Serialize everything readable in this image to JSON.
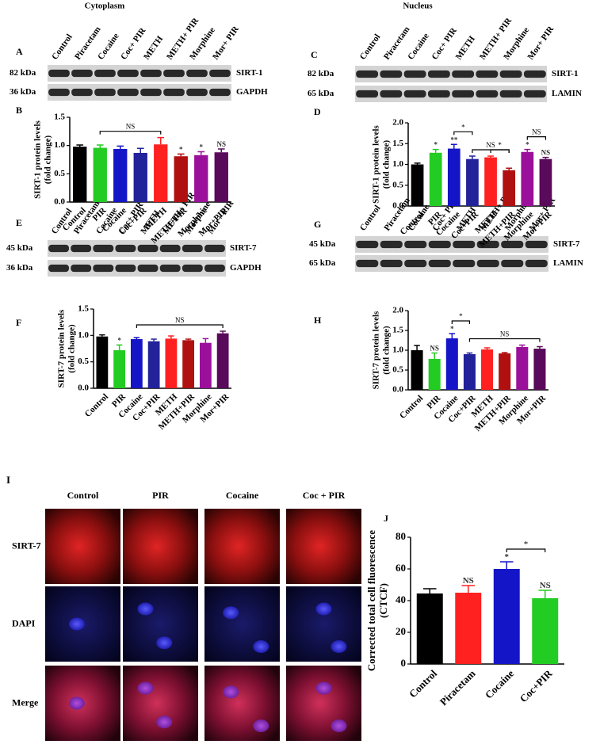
{
  "headers": [
    "Cytoplasm",
    "Nucleus"
  ],
  "blots": [
    {
      "letter": "A",
      "lanes": [
        "Control",
        "Piracetam",
        "Cocaine",
        "Coc+ PIR",
        "METH",
        "METH+ PIR",
        "Morphine",
        "Mor+ PIR"
      ],
      "rows": [
        {
          "size": "82 kDa",
          "protein": "SIRT-1"
        },
        {
          "size": "36 kDa",
          "protein": "GAPDH"
        }
      ]
    },
    {
      "letter": "C",
      "lanes": [
        "Control",
        "Piracetam",
        "Cocaine",
        "Coc+ PIR",
        "METH",
        "METH+ PIR",
        "Morphine",
        "Mor+ PIR"
      ],
      "rows": [
        {
          "size": "82 kDa",
          "protein": "SIRT-1"
        },
        {
          "size": "65 kDa",
          "protein": "LAMIN"
        }
      ]
    },
    {
      "letter": "E",
      "lanes": [
        "Control",
        "Piracetam",
        "Cocaine",
        "Coc+ PIR",
        "METH",
        "METH+ PIR",
        "Morphine",
        "Mor+ PIR"
      ],
      "rows": [
        {
          "size": "45 kDa",
          "protein": "SIRT-7"
        },
        {
          "size": "36 kDa",
          "protein": "GAPDH"
        }
      ]
    },
    {
      "letter": "G",
      "lanes": [
        "Control",
        "Piracetam",
        "Cocaine",
        "Coc+ PIR",
        "METH",
        "METH+ PIR",
        "Morphine",
        "Mor+ PIR"
      ],
      "rows": [
        {
          "size": "45 kDa",
          "protein": "SIRT-7"
        },
        {
          "size": "65 kDa",
          "protein": "LAMIN"
        }
      ]
    }
  ],
  "microscopy": {
    "letter": "I",
    "columns": [
      "Control",
      "PIR",
      "Cocaine",
      "Coc + PIR"
    ],
    "rows": [
      "SIRT-7",
      "DAPI",
      "Merge"
    ]
  },
  "chart_data": [
    {
      "type": "bar",
      "letter": "B",
      "y_label": [
        "SIRT-1 protein levels",
        "(fold change)"
      ],
      "categories": [
        "Control",
        "PIR",
        "Cocaine",
        "Coc+PIR",
        "METH",
        "METH+PIR",
        "Morphine",
        "Mor+PIR"
      ],
      "values": [
        0.98,
        0.96,
        0.94,
        0.87,
        1.02,
        0.81,
        0.83,
        0.88
      ],
      "errors": [
        0.03,
        0.05,
        0.05,
        0.08,
        0.12,
        0.04,
        0.06,
        0.06
      ],
      "colors": [
        "#000000",
        "#22cc22",
        "#1515c8",
        "#22229a",
        "#ff2020",
        "#b01010",
        "#9a109a",
        "#5a0a5a"
      ],
      "significance": [
        null,
        null,
        null,
        null,
        null,
        "*",
        "*",
        "NS"
      ],
      "brackets": [
        {
          "label": "NS",
          "from": "PIR",
          "to": "METH"
        }
      ],
      "ylim": [
        0,
        1.5
      ],
      "yticks": [
        {
          "value": 0,
          "label": "0.0"
        },
        0.5,
        {
          "value": 1,
          "label": "1.0"
        },
        1.5
      ]
    },
    {
      "type": "bar",
      "letter": "D",
      "y_label": [
        "SIRT-1 protein levels",
        "(fold change)"
      ],
      "categories": [
        "Control",
        "PIR",
        "Cocaine",
        "Coc+PIR",
        "METH",
        "METH+PIR",
        "Morphine",
        "Mor+PIR"
      ],
      "values": [
        1.0,
        1.28,
        1.38,
        1.13,
        1.17,
        0.86,
        1.3,
        1.13
      ],
      "errors": [
        0.03,
        0.08,
        0.1,
        0.07,
        0.03,
        0.05,
        0.06,
        0.04
      ],
      "colors": [
        "#000000",
        "#22cc22",
        "#1515c8",
        "#22229a",
        "#ff2020",
        "#b01010",
        "#9a109a",
        "#5a0a5a"
      ],
      "significance": [
        null,
        "*",
        "**",
        null,
        null,
        null,
        "*",
        "NS"
      ],
      "brackets": [
        {
          "label": "*",
          "from": "Cocaine",
          "to": "Coc+PIR"
        },
        {
          "label": "NS",
          "from": "Coc+PIR",
          "to": "METH+PIR"
        },
        {
          "label": "*",
          "from": "METH",
          "to": "METH+PIR"
        },
        {
          "label": "NS",
          "from": "Morphine",
          "to": "Mor+PIR"
        }
      ],
      "ylim": [
        0,
        2
      ],
      "yticks": [
        {
          "value": 0,
          "label": "0.0"
        },
        0.5,
        {
          "value": 1,
          "label": "1.0"
        },
        1.5,
        {
          "value": 2,
          "label": "2.0"
        }
      ]
    },
    {
      "type": "bar",
      "letter": "F",
      "y_label": [
        "SIRT-7 protein levels",
        "(fold change)"
      ],
      "categories": [
        "Control",
        "PIR",
        "Cocaine",
        "Coc+PIR",
        "METH",
        "METH+PIR",
        "Morphine",
        "Mor+PIR"
      ],
      "values": [
        0.98,
        0.72,
        0.93,
        0.89,
        0.94,
        0.91,
        0.86,
        1.04
      ],
      "errors": [
        0.03,
        0.1,
        0.03,
        0.04,
        0.05,
        0.02,
        0.08,
        0.04
      ],
      "colors": [
        "#000000",
        "#22cc22",
        "#1515c8",
        "#22229a",
        "#ff2020",
        "#b01010",
        "#9a109a",
        "#5a0a5a"
      ],
      "significance": [
        null,
        "*",
        null,
        null,
        null,
        null,
        null,
        null
      ],
      "brackets": [
        {
          "label": "NS",
          "from": "Cocaine",
          "to": "Mor+PIR"
        }
      ],
      "ylim": [
        0,
        1.5
      ],
      "yticks": [
        {
          "value": 0,
          "label": "0.0"
        },
        0.5,
        {
          "value": 1,
          "label": "1.0"
        },
        1.5
      ]
    },
    {
      "type": "bar",
      "letter": "H",
      "y_label": [
        "SIRT-7 protein levels",
        "(fold change)"
      ],
      "categories": [
        "Control",
        "PIR",
        "Cocaine",
        "Coc+PIR",
        "METH",
        "METH+PIR",
        "Morphine",
        "Mor+PIR"
      ],
      "values": [
        1.0,
        0.78,
        1.3,
        0.9,
        1.02,
        0.92,
        1.08,
        1.04
      ],
      "errors": [
        0.12,
        0.15,
        0.12,
        0.03,
        0.04,
        0.02,
        0.05,
        0.05
      ],
      "colors": [
        "#000000",
        "#22cc22",
        "#1515c8",
        "#22229a",
        "#ff2020",
        "#b01010",
        "#9a109a",
        "#5a0a5a"
      ],
      "significance": [
        null,
        "NS",
        "*",
        null,
        null,
        null,
        null,
        null
      ],
      "brackets": [
        {
          "label": "*",
          "from": "Cocaine",
          "to": "Coc+PIR"
        },
        {
          "label": "NS",
          "from": "Coc+PIR",
          "to": "Mor+PIR"
        }
      ],
      "ylim": [
        0,
        2
      ],
      "yticks": [
        {
          "value": 0,
          "label": "0.0"
        },
        0.5,
        {
          "value": 1,
          "label": "1.0"
        },
        1.5,
        {
          "value": 2,
          "label": "2.0"
        }
      ]
    },
    {
      "type": "bar",
      "letter": "J",
      "y_label": [
        "Corrected total cell fluorescence",
        "(CTCF)"
      ],
      "categories": [
        "Control",
        "Piracetam",
        "Cocaine",
        "Coc+PIR"
      ],
      "values": [
        44.5,
        45,
        60,
        41.5
      ],
      "errors": [
        3,
        4.5,
        4.5,
        5
      ],
      "colors": [
        "#000000",
        "#ff2020",
        "#1515c8",
        "#22cc22"
      ],
      "significance": [
        null,
        "NS",
        "*",
        "NS"
      ],
      "brackets": [
        {
          "label": "*",
          "from": "Cocaine",
          "to": "Coc+PIR"
        }
      ],
      "ylim": [
        0,
        80
      ],
      "yticks": [
        0,
        20,
        40,
        60,
        80
      ]
    }
  ]
}
